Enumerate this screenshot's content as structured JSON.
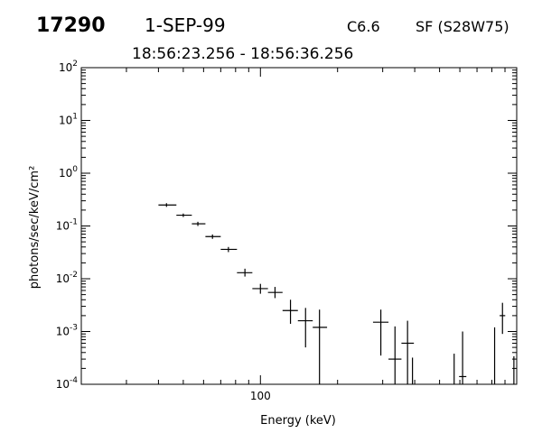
{
  "header": {
    "id": "17290",
    "date": "1-SEP-99",
    "flare_class": "C6.6",
    "location": "SF (S28W75)",
    "time_range": "18:56:23.256 - 18:56:36.256"
  },
  "chart_data": {
    "type": "scatter",
    "title": "",
    "xlabel": "Energy (keV)",
    "ylabel": "photons/sec/keV/cm²",
    "xscale": "log",
    "yscale": "log",
    "xlim": [
      20,
      1000
    ],
    "ylim": [
      0.0001,
      100
    ],
    "x_tick_labels": [
      {
        "value": 100,
        "label": "100"
      }
    ],
    "y_tick_labels": [
      {
        "value": 100,
        "base": "10",
        "exp": "2"
      },
      {
        "value": 10,
        "base": "10",
        "exp": "1"
      },
      {
        "value": 1,
        "base": "10",
        "exp": "0"
      },
      {
        "value": 0.1,
        "base": "10",
        "exp": "-1"
      },
      {
        "value": 0.01,
        "base": "10",
        "exp": "-2"
      },
      {
        "value": 0.001,
        "base": "10",
        "exp": "-3"
      },
      {
        "value": 0.0001,
        "base": "10",
        "exp": "-4"
      }
    ],
    "grid": false,
    "legend": "none",
    "points": [
      {
        "x": 43,
        "xlo": 40,
        "xhi": 47,
        "y": 0.25,
        "ylo": 0.23,
        "yhi": 0.27
      },
      {
        "x": 50,
        "xlo": 47,
        "xhi": 54,
        "y": 0.16,
        "ylo": 0.148,
        "yhi": 0.172
      },
      {
        "x": 57,
        "xlo": 54,
        "xhi": 61,
        "y": 0.11,
        "ylo": 0.1,
        "yhi": 0.12
      },
      {
        "x": 65,
        "xlo": 61,
        "xhi": 70,
        "y": 0.063,
        "ylo": 0.057,
        "yhi": 0.069
      },
      {
        "x": 75,
        "xlo": 70,
        "xhi": 81,
        "y": 0.036,
        "ylo": 0.032,
        "yhi": 0.04
      },
      {
        "x": 87,
        "xlo": 81,
        "xhi": 93,
        "y": 0.013,
        "ylo": 0.011,
        "yhi": 0.0155
      },
      {
        "x": 100,
        "xlo": 93,
        "xhi": 107,
        "y": 0.0065,
        "ylo": 0.0052,
        "yhi": 0.008
      },
      {
        "x": 114,
        "xlo": 107,
        "xhi": 122,
        "y": 0.0055,
        "ylo": 0.0043,
        "yhi": 0.007
      },
      {
        "x": 131,
        "xlo": 122,
        "xhi": 140,
        "y": 0.0025,
        "ylo": 0.0014,
        "yhi": 0.004
      },
      {
        "x": 150,
        "xlo": 140,
        "xhi": 160,
        "y": 0.0016,
        "ylo": 0.0005,
        "yhi": 0.0028
      },
      {
        "x": 170,
        "xlo": 160,
        "xhi": 182,
        "y": 0.0012,
        "ylo": 0.0001,
        "yhi": 0.0026
      },
      {
        "x": 295,
        "xlo": 275,
        "xhi": 316,
        "y": 0.0015,
        "ylo": 0.00035,
        "yhi": 0.0026
      },
      {
        "x": 335,
        "xlo": 316,
        "xhi": 355,
        "y": 0.0003,
        "ylo": 0.0001,
        "yhi": 0.00125
      },
      {
        "x": 375,
        "xlo": 355,
        "xhi": 397,
        "y": 0.0006,
        "ylo": 0.0001,
        "yhi": 0.0016
      },
      {
        "x": 392,
        "xlo": 392,
        "xhi": 392,
        "y": null,
        "ylo": 0.0001,
        "yhi": 0.00032
      },
      {
        "x": 570,
        "xlo": 570,
        "xhi": 570,
        "y": null,
        "ylo": 0.0001,
        "yhi": 0.00038
      },
      {
        "x": 615,
        "xlo": 596,
        "xhi": 636,
        "y": 0.00014,
        "ylo": 0.0001,
        "yhi": 0.001
      },
      {
        "x": 820,
        "xlo": 820,
        "xhi": 820,
        "y": null,
        "ylo": 0.0001,
        "yhi": 0.0012
      },
      {
        "x": 880,
        "xlo": 858,
        "xhi": 902,
        "y": 0.002,
        "ylo": 0.0009,
        "yhi": 0.0035
      },
      {
        "x": 975,
        "xlo": 975,
        "xhi": 975,
        "y": null,
        "ylo": 0.0001,
        "yhi": 0.00034
      }
    ]
  }
}
